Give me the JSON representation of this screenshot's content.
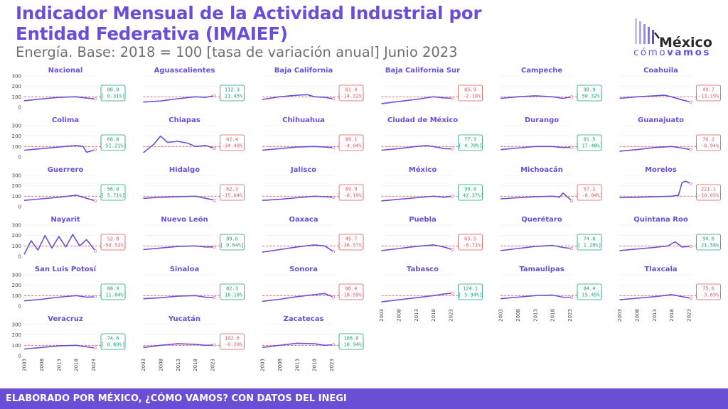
{
  "header": {
    "title": "Indicador Mensual de la Actividad Industrial por Entidad Federativa (IMAIEF)",
    "subtitle": "Energía. Base: 2018 = 100 [tasa de variación anual] Junio 2023"
  },
  "logo": {
    "word": "México",
    "sub_thin": "cómo",
    "sub_bold": "vamos"
  },
  "footer": {
    "text": "ELABORADO POR MÉXICO, ¿CÓMO VAMOS? CON DATOS DEL INEGI"
  },
  "colors": {
    "accent": "#6a4fd6",
    "line": "#6a4fd6",
    "reference": "#e05a5a",
    "positive": "#1aa37a",
    "negative": "#e05a5a"
  },
  "chart_data": {
    "type": "line",
    "layout": "small-multiples",
    "x_ticks": [
      "2003",
      "2008",
      "2013",
      "2018",
      "2023"
    ],
    "y_ticks": [
      "0",
      "100",
      "200",
      "300"
    ],
    "ylim": [
      0,
      300
    ],
    "reference_line": 100,
    "panels": [
      {
        "name": "Nacional",
        "value": "80.0",
        "change": "[ 0.31%]",
        "positive": true,
        "x": [
          2003,
          2008,
          2013,
          2018,
          2021,
          2023.5
        ],
        "y": [
          62,
          80,
          95,
          100,
          88,
          80
        ]
      },
      {
        "name": "Aguascalientes",
        "value": "112.3",
        "change": "[ 21.45%]",
        "positive": true,
        "x": [
          2003,
          2008,
          2013,
          2018,
          2021,
          2023.5
        ],
        "y": [
          50,
          60,
          82,
          100,
          95,
          112
        ]
      },
      {
        "name": "Baja California",
        "value": "81.4",
        "change": "[-14.32%]",
        "positive": false,
        "x": [
          2003,
          2008,
          2013,
          2016,
          2018,
          2021,
          2023.5
        ],
        "y": [
          75,
          100,
          115,
          120,
          100,
          95,
          81
        ]
      },
      {
        "name": "Baja California Sur",
        "value": "85.9",
        "change": "[ -2.18%]",
        "positive": false,
        "x": [
          2003,
          2008,
          2013,
          2018,
          2021,
          2023.5
        ],
        "y": [
          35,
          55,
          75,
          100,
          90,
          86
        ]
      },
      {
        "name": "Campeche",
        "value": "98.9",
        "change": "[ 50.32%]",
        "positive": true,
        "x": [
          2003,
          2008,
          2013,
          2018,
          2021,
          2023.5
        ],
        "y": [
          85,
          100,
          110,
          100,
          85,
          99
        ]
      },
      {
        "name": "Coahuila",
        "value": "49.7",
        "change": "[-13.19%]",
        "positive": false,
        "x": [
          2003,
          2008,
          2013,
          2016,
          2018,
          2021,
          2023.5
        ],
        "y": [
          85,
          100,
          110,
          115,
          100,
          70,
          50
        ]
      },
      {
        "name": "Colima",
        "value": "68.8",
        "change": "[ 51.21%]",
        "positive": true,
        "x": [
          2003,
          2008,
          2013,
          2018,
          2020,
          2021,
          2023.5
        ],
        "y": [
          65,
          80,
          95,
          110,
          100,
          45,
          69
        ]
      },
      {
        "name": "Chiapas",
        "value": "82.4",
        "change": "[-34.48%]",
        "positive": false,
        "x": [
          2003,
          2006,
          2008,
          2010,
          2013,
          2016,
          2018,
          2021,
          2023.5
        ],
        "y": [
          40,
          120,
          200,
          140,
          150,
          130,
          100,
          110,
          82
        ]
      },
      {
        "name": "Chihuahua",
        "value": "89.1",
        "change": "[ -4.04%]",
        "positive": false,
        "x": [
          2003,
          2008,
          2013,
          2018,
          2021,
          2023.5
        ],
        "y": [
          65,
          80,
          95,
          100,
          95,
          89
        ]
      },
      {
        "name": "Ciudad de México",
        "value": "77.3",
        "change": "[ 4.78%]",
        "positive": true,
        "x": [
          2003,
          2008,
          2013,
          2016,
          2018,
          2021,
          2023.5
        ],
        "y": [
          65,
          80,
          100,
          110,
          100,
          80,
          77
        ]
      },
      {
        "name": "Durango",
        "value": "91.5",
        "change": "[ 17.48%]",
        "positive": true,
        "x": [
          2003,
          2008,
          2013,
          2018,
          2021,
          2023.5
        ],
        "y": [
          70,
          85,
          100,
          100,
          90,
          92
        ]
      },
      {
        "name": "Guanajuato",
        "value": "70.2",
        "change": "[ -0.94%]",
        "positive": false,
        "x": [
          2003,
          2008,
          2013,
          2018,
          2021,
          2023.5
        ],
        "y": [
          55,
          70,
          90,
          100,
          85,
          70
        ]
      },
      {
        "name": "Guerrero",
        "value": "56.0",
        "change": "[ 5.71%]",
        "positive": true,
        "x": [
          2003,
          2008,
          2013,
          2018,
          2021,
          2023.5
        ],
        "y": [
          60,
          75,
          90,
          110,
          80,
          56
        ]
      },
      {
        "name": "Hidalgo",
        "value": "62.3",
        "change": "[-15.04%]",
        "positive": false,
        "x": [
          2003,
          2008,
          2013,
          2018,
          2021,
          2023.5
        ],
        "y": [
          80,
          90,
          95,
          100,
          80,
          62
        ]
      },
      {
        "name": "Jalisco",
        "value": "89.9",
        "change": "[ -0.19%]",
        "positive": false,
        "x": [
          2003,
          2008,
          2013,
          2018,
          2021,
          2023.5
        ],
        "y": [
          60,
          70,
          85,
          100,
          95,
          90
        ]
      },
      {
        "name": "México",
        "value": "99.8",
        "change": "[ 42.37%]",
        "positive": true,
        "x": [
          2003,
          2008,
          2013,
          2018,
          2021,
          2023.5
        ],
        "y": [
          55,
          70,
          85,
          100,
          90,
          100
        ]
      },
      {
        "name": "Michoacán",
        "value": "57.2",
        "change": "[ -8.04%]",
        "positive": false,
        "x": [
          2003,
          2008,
          2013,
          2018,
          2020,
          2021,
          2023.5
        ],
        "y": [
          75,
          85,
          95,
          100,
          90,
          130,
          57
        ]
      },
      {
        "name": "Morelos",
        "value": "221.1",
        "change": "[-10.05%]",
        "positive": false,
        "x": [
          2003,
          2008,
          2013,
          2018,
          2020,
          2021,
          2022,
          2023.5
        ],
        "y": [
          85,
          90,
          95,
          100,
          110,
          230,
          245,
          221
        ]
      },
      {
        "name": "Nayarit",
        "value": "52.8",
        "change": "[-58.52%]",
        "positive": false,
        "x": [
          2003,
          2005,
          2007,
          2009,
          2011,
          2013,
          2015,
          2017,
          2019,
          2021,
          2023.5
        ],
        "y": [
          20,
          150,
          60,
          200,
          80,
          190,
          90,
          210,
          100,
          160,
          53
        ]
      },
      {
        "name": "Nuevo León",
        "value": "89.6",
        "change": "[ 9.64%]",
        "positive": true,
        "x": [
          2003,
          2008,
          2013,
          2018,
          2021,
          2023.5
        ],
        "y": [
          65,
          80,
          95,
          100,
          90,
          90
        ]
      },
      {
        "name": "Oaxaca",
        "value": "45.7",
        "change": "[-36.57%]",
        "positive": false,
        "x": [
          2003,
          2008,
          2013,
          2018,
          2021,
          2023.5
        ],
        "y": [
          40,
          65,
          90,
          110,
          100,
          46
        ]
      },
      {
        "name": "Puebla",
        "value": "63.5",
        "change": "[ -8.71%]",
        "positive": false,
        "x": [
          2003,
          2008,
          2013,
          2018,
          2021,
          2023.5
        ],
        "y": [
          55,
          75,
          95,
          110,
          90,
          64
        ]
      },
      {
        "name": "Querétaro",
        "value": "74.8",
        "change": "[ 1.20%]",
        "positive": true,
        "x": [
          2003,
          2008,
          2013,
          2018,
          2021,
          2023.5
        ],
        "y": [
          55,
          75,
          95,
          105,
          85,
          75
        ]
      },
      {
        "name": "Quintana Roo",
        "value": "94.6",
        "change": "[ 21.58%]",
        "positive": true,
        "x": [
          2003,
          2008,
          2013,
          2017,
          2019,
          2021,
          2023.5
        ],
        "y": [
          55,
          70,
          85,
          100,
          140,
          90,
          95
        ]
      },
      {
        "name": "San Luis Potosí",
        "value": "88.9",
        "change": "[ 11.84%]",
        "positive": true,
        "x": [
          2003,
          2008,
          2013,
          2018,
          2021,
          2023.5
        ],
        "y": [
          50,
          65,
          85,
          100,
          85,
          89
        ]
      },
      {
        "name": "Sinaloa",
        "value": "82.3",
        "change": "[ 18.18%]",
        "positive": true,
        "x": [
          2003,
          2008,
          2013,
          2018,
          2021,
          2023.5
        ],
        "y": [
          70,
          80,
          95,
          100,
          85,
          82
        ]
      },
      {
        "name": "Sonora",
        "value": "86.4",
        "change": "[-18.59%]",
        "positive": false,
        "x": [
          2003,
          2008,
          2013,
          2018,
          2021,
          2023.5
        ],
        "y": [
          45,
          65,
          90,
          110,
          120,
          86
        ]
      },
      {
        "name": "Tabasco",
        "value": "124.1",
        "change": "[ 5.94%]",
        "positive": true,
        "x": [
          2003,
          2008,
          2013,
          2018,
          2021,
          2023.5
        ],
        "y": [
          40,
          60,
          80,
          100,
          115,
          124
        ]
      },
      {
        "name": "Tamaulipas",
        "value": "84.4",
        "change": "[ 15.45%]",
        "positive": true,
        "x": [
          2003,
          2008,
          2013,
          2018,
          2021,
          2023.5
        ],
        "y": [
          70,
          85,
          100,
          105,
          85,
          84
        ]
      },
      {
        "name": "Tlaxcala",
        "value": "75.6",
        "change": "[ -3.69%]",
        "positive": false,
        "x": [
          2003,
          2008,
          2013,
          2018,
          2021,
          2023.5
        ],
        "y": [
          60,
          75,
          90,
          110,
          90,
          76
        ]
      },
      {
        "name": "Veracruz",
        "value": "74.6",
        "change": "[ 8.89%]",
        "positive": true,
        "x": [
          2003,
          2008,
          2013,
          2018,
          2021,
          2023.5
        ],
        "y": [
          65,
          80,
          95,
          100,
          85,
          75
        ]
      },
      {
        "name": "Yucatán",
        "value": "102.6",
        "change": "[ -0.28%]",
        "positive": false,
        "x": [
          2003,
          2008,
          2013,
          2018,
          2021,
          2023.5
        ],
        "y": [
          80,
          100,
          115,
          110,
          100,
          103
        ]
      },
      {
        "name": "Zacatecas",
        "value": "106.0",
        "change": "[ 10.94%]",
        "positive": true,
        "x": [
          2003,
          2008,
          2013,
          2018,
          2021,
          2023.5
        ],
        "y": [
          80,
          100,
          120,
          115,
          100,
          106
        ]
      }
    ]
  }
}
